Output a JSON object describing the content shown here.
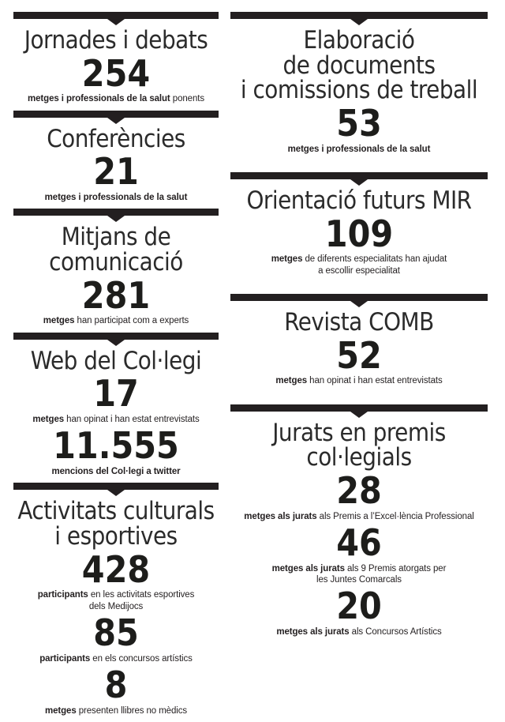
{
  "page": {
    "background": "#ffffff",
    "bar_color": "#231f20",
    "text_color": "#231f20"
  },
  "left": {
    "sections": [
      {
        "title": [
          "Jornades i debats"
        ],
        "stats": [
          {
            "value": "254",
            "bold": "metges i professionals de la salut",
            "rest": " ponents"
          }
        ]
      },
      {
        "title": [
          "Conferències"
        ],
        "stats": [
          {
            "value": "21",
            "bold": "metges i professionals de la salut",
            "rest": ""
          }
        ]
      },
      {
        "title": [
          "Mitjans de",
          "comunicació"
        ],
        "stats": [
          {
            "value": "281",
            "bold": "metges",
            "rest": " han participat com a experts"
          }
        ]
      },
      {
        "title": [
          "Web del Col·legi"
        ],
        "stats": [
          {
            "value": "17",
            "bold": "metges",
            "rest": " han opinat i han estat entrevistats"
          },
          {
            "value": "11.555",
            "bold": "mencions del Col·legi a twitter",
            "rest": ""
          }
        ]
      },
      {
        "title": [
          "Activitats culturals",
          "i esportives"
        ],
        "stats": [
          {
            "value": "428",
            "bold": "participants",
            "rest": " en les activitats esportives",
            "line2": "dels Medijocs"
          },
          {
            "value": "85",
            "bold": "participants",
            "rest": " en els concursos artístics"
          },
          {
            "value": "8",
            "bold": "metges",
            "rest": " presenten llibres no mèdics"
          }
        ]
      }
    ]
  },
  "right": {
    "sections": [
      {
        "title": [
          "Elaboració",
          "de documents",
          "i comissions de treball"
        ],
        "stats": [
          {
            "value": "53",
            "bold": "metges i professionals de la salut",
            "rest": ""
          }
        ]
      },
      {
        "title": [
          "Orientació futurs MIR"
        ],
        "stats": [
          {
            "value": "109",
            "bold": "metges",
            "rest": " de diferents especialitats han ajudat",
            "line2": "a escollir especialitat"
          }
        ]
      },
      {
        "title": [
          "Revista COMB"
        ],
        "stats": [
          {
            "value": "52",
            "bold": "metges",
            "rest": " han opinat i han estat entrevistats"
          }
        ]
      },
      {
        "title": [
          "Jurats en premis",
          "col·legials"
        ],
        "stats": [
          {
            "value": "28",
            "bold": "metges als jurats",
            "rest": " als Premis a l’Excel·lència Professional"
          },
          {
            "value": "46",
            "bold": "metges als jurats",
            "rest": " als 9 Premis atorgats per",
            "line2": "les Juntes Comarcals"
          },
          {
            "value": "20",
            "bold": "metges als jurats",
            "rest": " als Concursos Artístics"
          }
        ]
      }
    ]
  }
}
